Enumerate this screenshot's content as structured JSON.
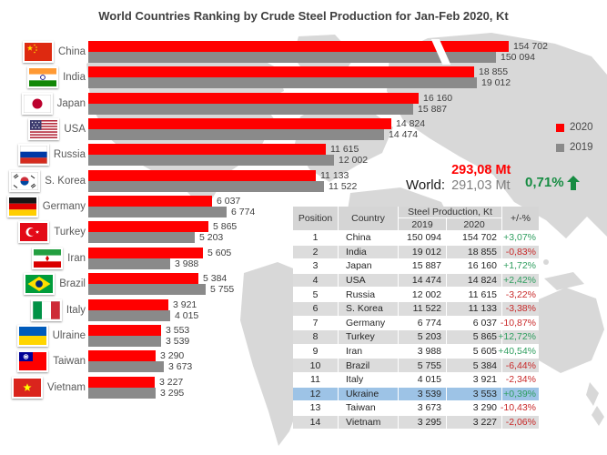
{
  "title": "World Countries Ranking by Crude Steel Production for Jan-Feb 2020, Kt",
  "legend": {
    "items": [
      {
        "label": "2020",
        "color": "#ff0000"
      },
      {
        "label": "2019",
        "color": "#8a8a8a"
      }
    ]
  },
  "world": {
    "label": "World:",
    "v2020": "293,08 Mt",
    "v2019": "291,03 Mt",
    "v2020_color": "#ff0000",
    "v2019_color": "#808080",
    "change": "0,71%",
    "change_color": "#168c42",
    "arrow_icon": "up-arrow"
  },
  "chart_data": {
    "type": "bar",
    "orientation": "horizontal",
    "title": "World Countries Ranking by Crude Steel Production for Jan-Feb 2020, Kt",
    "unit": "Kt",
    "legend_position": "right",
    "categories": [
      "China",
      "India",
      "Japan",
      "USA",
      "Russia",
      "S. Korea",
      "Germany",
      "Turkey",
      "Iran",
      "Brazil",
      "Italy",
      "Ulraine",
      "Taiwan",
      "Vietnam"
    ],
    "flags": [
      "cn",
      "in",
      "jp",
      "us",
      "ru",
      "kr",
      "de",
      "tr",
      "ir",
      "br",
      "it",
      "ua",
      "tw",
      "vn"
    ],
    "series": [
      {
        "name": "2020",
        "color": "#ff0000",
        "values": [
          154702,
          18855,
          16160,
          14824,
          11615,
          11133,
          6037,
          5865,
          5605,
          5384,
          3921,
          3553,
          3290,
          3227
        ]
      },
      {
        "name": "2019",
        "color": "#8a8a8a",
        "values": [
          150094,
          19012,
          15887,
          14474,
          12002,
          11522,
          6774,
          5203,
          3988,
          5755,
          4015,
          3539,
          3673,
          3295
        ]
      }
    ],
    "value_labels": {
      "2020": [
        "154 702",
        "18 855",
        "16 160",
        "14 824",
        "11 615",
        "11 133",
        "6 037",
        "5 865",
        "5 605",
        "5 384",
        "3 921",
        "3 553",
        "3 290",
        "3 227"
      ],
      "2019": [
        "150 094",
        "19 012",
        "15 887",
        "14 474",
        "12 002",
        "11 522",
        "6 774",
        "5 203",
        "3 988",
        "5 755",
        "4 015",
        "3 539",
        "3 673",
        "3 295"
      ]
    },
    "truncated_category": "China"
  },
  "table": {
    "headers": {
      "position": "Position",
      "country": "Country",
      "group": "Steel Production, Kt",
      "y2019": "2019",
      "y2020": "2020",
      "pct": "+/-%"
    },
    "colors": {
      "positive": "#2f9e5f",
      "negative": "#c92a2a",
      "highlight_row": "#9dc3e6",
      "header_bg": "#d5d5d5",
      "stripe_bg": "#dcdcdc"
    },
    "rows": [
      {
        "position": "1",
        "country": "China",
        "y2019": "150 094",
        "y2020": "154 702",
        "pct": "+3,07%",
        "trend": "up",
        "highlight": false
      },
      {
        "position": "2",
        "country": "India",
        "y2019": "19 012",
        "y2020": "18 855",
        "pct": "-0,83%",
        "trend": "down",
        "highlight": false
      },
      {
        "position": "3",
        "country": "Japan",
        "y2019": "15 887",
        "y2020": "16 160",
        "pct": "+1,72%",
        "trend": "up",
        "highlight": false
      },
      {
        "position": "4",
        "country": "USA",
        "y2019": "14 474",
        "y2020": "14 824",
        "pct": "+2,42%",
        "trend": "up",
        "highlight": false
      },
      {
        "position": "5",
        "country": "Russia",
        "y2019": "12 002",
        "y2020": "11 615",
        "pct": "-3,22%",
        "trend": "down",
        "highlight": false
      },
      {
        "position": "6",
        "country": "S. Korea",
        "y2019": "11 522",
        "y2020": "11 133",
        "pct": "-3,38%",
        "trend": "down",
        "highlight": false
      },
      {
        "position": "7",
        "country": "Germany",
        "y2019": "6 774",
        "y2020": "6 037",
        "pct": "-10,87%",
        "trend": "down",
        "highlight": false
      },
      {
        "position": "8",
        "country": "Turkey",
        "y2019": "5 203",
        "y2020": "5 865",
        "pct": "+12,72%",
        "trend": "up",
        "highlight": false
      },
      {
        "position": "9",
        "country": "Iran",
        "y2019": "3 988",
        "y2020": "5 605",
        "pct": "+40,54%",
        "trend": "up",
        "highlight": false
      },
      {
        "position": "10",
        "country": "Brazil",
        "y2019": "5 755",
        "y2020": "5 384",
        "pct": "-6,44%",
        "trend": "down",
        "highlight": false
      },
      {
        "position": "11",
        "country": "Italy",
        "y2019": "4 015",
        "y2020": "3 921",
        "pct": "-2,34%",
        "trend": "down",
        "highlight": false
      },
      {
        "position": "12",
        "country": "Ukraine",
        "y2019": "3 539",
        "y2020": "3 553",
        "pct": "+0,39%",
        "trend": "up",
        "highlight": true
      },
      {
        "position": "13",
        "country": "Taiwan",
        "y2019": "3 673",
        "y2020": "3 290",
        "pct": "-10,43%",
        "trend": "down",
        "highlight": false
      },
      {
        "position": "14",
        "country": "Vietnam",
        "y2019": "3 295",
        "y2020": "3 227",
        "pct": "-2,06%",
        "trend": "down",
        "highlight": false
      }
    ]
  }
}
